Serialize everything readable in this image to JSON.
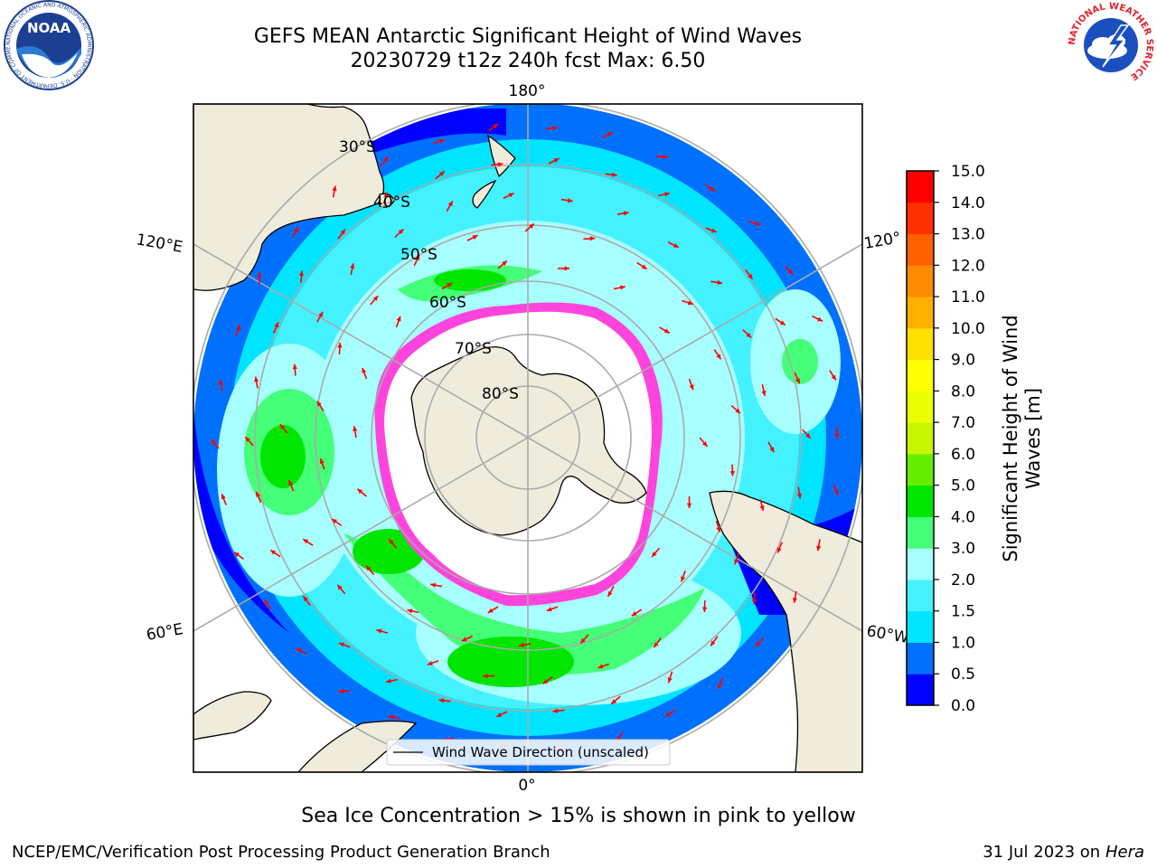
{
  "header": {
    "title_line1": "GEFS MEAN Antarctic Significant Height of Wind Waves",
    "title_line2": "20230729 t12z 240h fcst   Max: 6.50"
  },
  "logos": {
    "noaa": {
      "text": "NOAA",
      "ring_text": "NATIONAL OCEANIC AND ATMOSPHERIC ADMINISTRATION · U.S. DEPARTMENT OF COMMERCE"
    },
    "nws": {
      "ring_text": "NATIONAL WEATHER SERVICE"
    }
  },
  "map": {
    "projection": "south-polar-stereographic",
    "longitude_labels": {
      "top": "180°",
      "bottom": "0°",
      "left_upper": "120°E",
      "left_lower": "60°E",
      "right_upper": "120°",
      "right_lower": "60°W"
    },
    "latitude_labels": [
      "30°S",
      "40°S",
      "50°S",
      "60°S",
      "70°S",
      "80°S"
    ],
    "legend_label": "Wind Wave Direction (unscaled)",
    "colors": {
      "land": "#efecdc",
      "ice_fringe": "#ff44dd",
      "arrow": "#ff0000",
      "grid": "#aaaaaa"
    }
  },
  "colorbar": {
    "label": "Significant Height of Wind Waves [m]",
    "label_line1": "Significant Height of Wind",
    "label_line2": "Waves [m]",
    "ticks": [
      "0.0",
      "0.5",
      "1.0",
      "1.5",
      "2.0",
      "3.0",
      "4.0",
      "5.0",
      "6.0",
      "7.0",
      "8.0",
      "9.0",
      "10.0",
      "11.0",
      "12.0",
      "13.0",
      "14.0",
      "15.0"
    ],
    "colors": [
      "#0000ff",
      "#0070ff",
      "#00e5ff",
      "#44f2ff",
      "#a8ffff",
      "#44ff77",
      "#00e600",
      "#66ee00",
      "#c8f500",
      "#eaff00",
      "#ffff00",
      "#ffe000",
      "#ffb000",
      "#ff8c00",
      "#ff6000",
      "#ff3000",
      "#ff0000"
    ]
  },
  "chart_data": {
    "type": "heatmap",
    "title": "GEFS MEAN Antarctic Significant Height of Wind Waves",
    "subtitle": "20230729 t12z 240h fcst   Max: 6.50",
    "variable": "Significant Height of Wind Waves [m]",
    "max": 6.5,
    "color_scale_range": [
      0,
      15
    ],
    "color_levels": [
      0,
      0.5,
      1,
      1.5,
      2,
      3,
      4,
      5,
      6,
      7,
      8,
      9,
      10,
      11,
      12,
      13,
      14,
      15
    ]
  },
  "notes": {
    "sea_ice": "Sea Ice Concentration > 15% is shown in pink to yellow"
  },
  "footer": {
    "left": "NCEP/EMC/Verification Post Processing Product Generation Branch",
    "right_date": "31 Jul 2023 on",
    "right_host": "Hera"
  }
}
